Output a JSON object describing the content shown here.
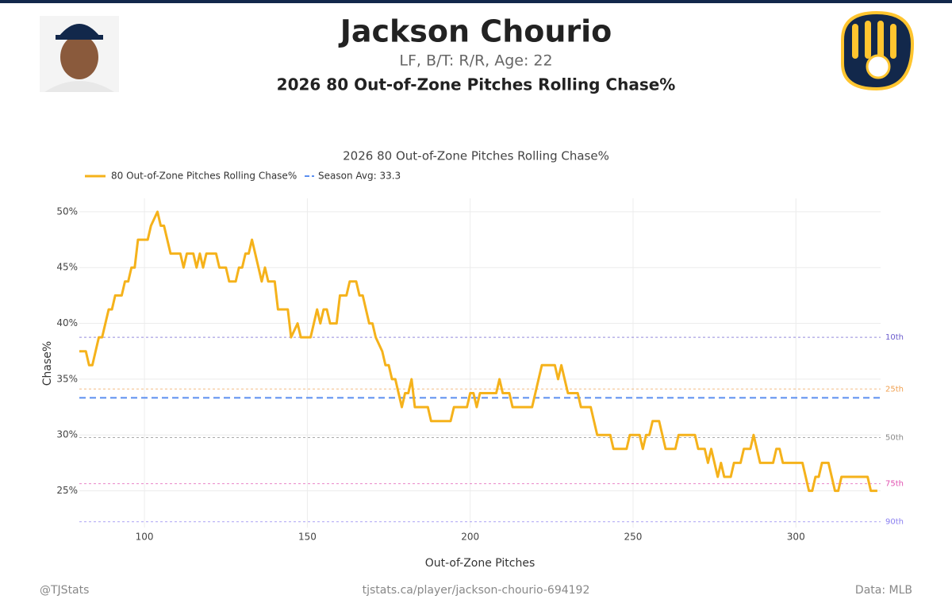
{
  "header": {
    "name": "Jackson Chourio",
    "subtitle": "LF, B/T: R/R, Age: 22",
    "title": "2026 80 Out-of-Zone Pitches Rolling Chase%"
  },
  "footer": {
    "left": "@TJStats",
    "center": "tjstats.ca/player/jackson-chourio-694192",
    "right": "Data: MLB"
  },
  "chart_data": {
    "type": "line",
    "title": "2026 80 Out-of-Zone Pitches Rolling Chase%",
    "x_label": "Out-of-Zone Pitches",
    "y_label": "Chase%",
    "xlim": [
      80,
      326
    ],
    "xticks": [
      100,
      150,
      200,
      250,
      300
    ],
    "ylim": [
      21.7,
      51.2
    ],
    "yticks": [
      {
        "value": 25,
        "label": "25%"
      },
      {
        "value": 30,
        "label": "30%"
      },
      {
        "value": 35,
        "label": "35%"
      },
      {
        "value": 40,
        "label": "40%"
      },
      {
        "value": 45,
        "label": "45%"
      },
      {
        "value": 50,
        "label": "50%"
      }
    ],
    "grid": true,
    "x": [
      80,
      82,
      83,
      84,
      86,
      87,
      89,
      90,
      91,
      93,
      94,
      95,
      96,
      97,
      98,
      101,
      102,
      104,
      105,
      106,
      108,
      111,
      112,
      113,
      115,
      116,
      117,
      118,
      119,
      122,
      123,
      125,
      126,
      128,
      129,
      130,
      131,
      132,
      133,
      134,
      135,
      136,
      137,
      138,
      140,
      141,
      144,
      145,
      147,
      148,
      151,
      152,
      153,
      154,
      155,
      156,
      157,
      159,
      160,
      162,
      163,
      165,
      166,
      167,
      168,
      169,
      170,
      171,
      173,
      174,
      175,
      176,
      177,
      178,
      179,
      180,
      181,
      182,
      183,
      187,
      188,
      194,
      195,
      199,
      200,
      201,
      202,
      203,
      204,
      208,
      209,
      210,
      212,
      213,
      219,
      220,
      221,
      222,
      223,
      226,
      227,
      228,
      229,
      230,
      233,
      234,
      237,
      238,
      239,
      240,
      243,
      244,
      248,
      249,
      252,
      253,
      254,
      255,
      256,
      258,
      259,
      260,
      261,
      263,
      264,
      269,
      270,
      272,
      273,
      274,
      275,
      276,
      277,
      278,
      280,
      281,
      283,
      284,
      286,
      287,
      288,
      289,
      293,
      294,
      295,
      296,
      302,
      303,
      304,
      305,
      306,
      307,
      308,
      310,
      311,
      312,
      313,
      314,
      322,
      323,
      325
    ],
    "series": [
      {
        "name": "80 Out-of-Zone Pitches Rolling Chase%",
        "color": "#f5b21b",
        "values": [
          37.5,
          37.5,
          36.25,
          36.25,
          38.75,
          38.75,
          41.25,
          41.25,
          42.5,
          42.5,
          43.75,
          43.75,
          45,
          45,
          47.5,
          47.5,
          48.75,
          50,
          48.75,
          48.75,
          46.25,
          46.25,
          45,
          46.25,
          46.25,
          45,
          46.25,
          45,
          46.25,
          46.25,
          45,
          45,
          43.75,
          43.75,
          45,
          45,
          46.25,
          46.25,
          47.5,
          46.25,
          45,
          43.75,
          45,
          43.75,
          43.75,
          41.25,
          41.25,
          38.75,
          40,
          38.75,
          38.75,
          40,
          41.25,
          40,
          41.25,
          41.25,
          40,
          40,
          42.5,
          42.5,
          43.75,
          43.75,
          42.5,
          42.5,
          41.25,
          40,
          40,
          38.75,
          37.5,
          36.25,
          36.25,
          35,
          35,
          33.75,
          32.5,
          33.75,
          33.75,
          35,
          32.5,
          32.5,
          31.25,
          31.25,
          32.5,
          32.5,
          33.75,
          33.75,
          32.5,
          33.75,
          33.75,
          33.75,
          35,
          33.75,
          33.75,
          32.5,
          32.5,
          33.75,
          35,
          36.25,
          36.25,
          36.25,
          35,
          36.25,
          35,
          33.75,
          33.75,
          32.5,
          32.5,
          31.25,
          30,
          30,
          30,
          28.75,
          28.75,
          30,
          30,
          28.75,
          30,
          30,
          31.25,
          31.25,
          30,
          28.75,
          28.75,
          28.75,
          30,
          30,
          28.75,
          28.75,
          27.5,
          28.75,
          27.5,
          26.25,
          27.5,
          26.25,
          26.25,
          27.5,
          27.5,
          28.75,
          28.75,
          30,
          28.75,
          27.5,
          27.5,
          28.75,
          28.75,
          27.5,
          27.5,
          26.25,
          25,
          25,
          26.25,
          26.25,
          27.5,
          27.5,
          26.25,
          25,
          25,
          26.25,
          26.25,
          25,
          25
        ]
      }
    ],
    "season_avg": {
      "name": "Season Avg: 33.3",
      "value": 33.33,
      "color": "#5b8ff0"
    },
    "reference_lines": [
      {
        "label": "10th",
        "value": 38.75,
        "color": "#6a5acd"
      },
      {
        "label": "25th",
        "value": 34.12,
        "color": "#f0a050"
      },
      {
        "label": "50th",
        "value": 29.77,
        "color": "#888888"
      },
      {
        "label": "75th",
        "value": 25.64,
        "color": "#e050b0"
      },
      {
        "label": "90th",
        "value": 22.22,
        "color": "#8a7ff0"
      }
    ]
  }
}
